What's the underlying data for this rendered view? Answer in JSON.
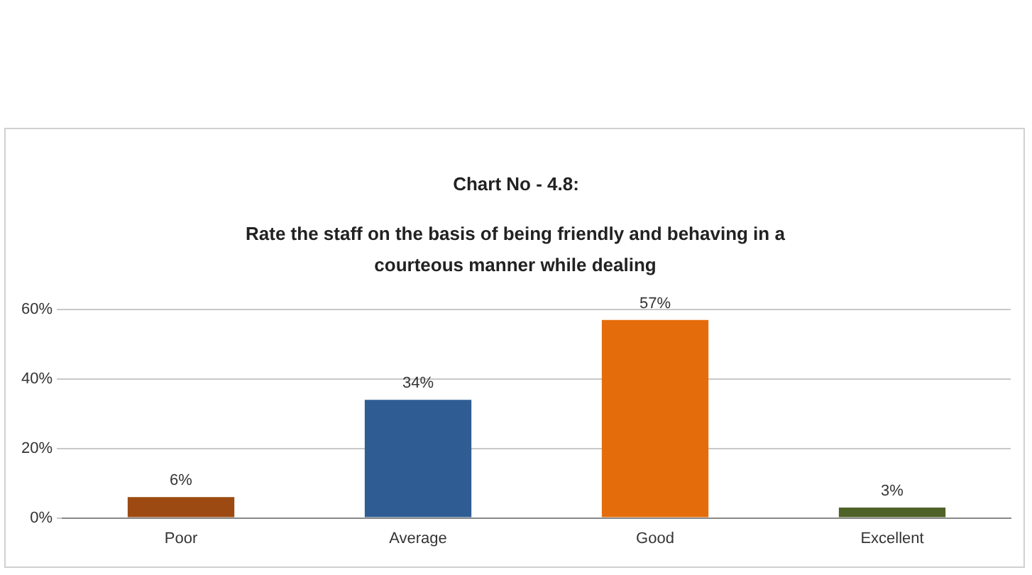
{
  "chart_data": {
    "type": "bar",
    "title": "Chart No - 4.8:",
    "subtitle": "Rate the staff on the basis of being friendly and behaving in a courteous manner while dealing",
    "categories": [
      "Poor",
      "Average",
      "Good",
      "Excellent"
    ],
    "values": [
      6,
      34,
      57,
      3
    ],
    "colors": [
      "#9c4a12",
      "#2f5d93",
      "#e46c0a",
      "#4f6228"
    ],
    "value_labels": [
      "6%",
      "34%",
      "57%",
      "3%"
    ],
    "ylim": [
      0,
      60
    ],
    "yticks": [
      {
        "value": 0,
        "label": "0%"
      },
      {
        "value": 20,
        "label": "20%"
      },
      {
        "value": 40,
        "label": "40%"
      },
      {
        "value": 60,
        "label": "60%"
      }
    ],
    "grid": "y",
    "legend": false
  }
}
